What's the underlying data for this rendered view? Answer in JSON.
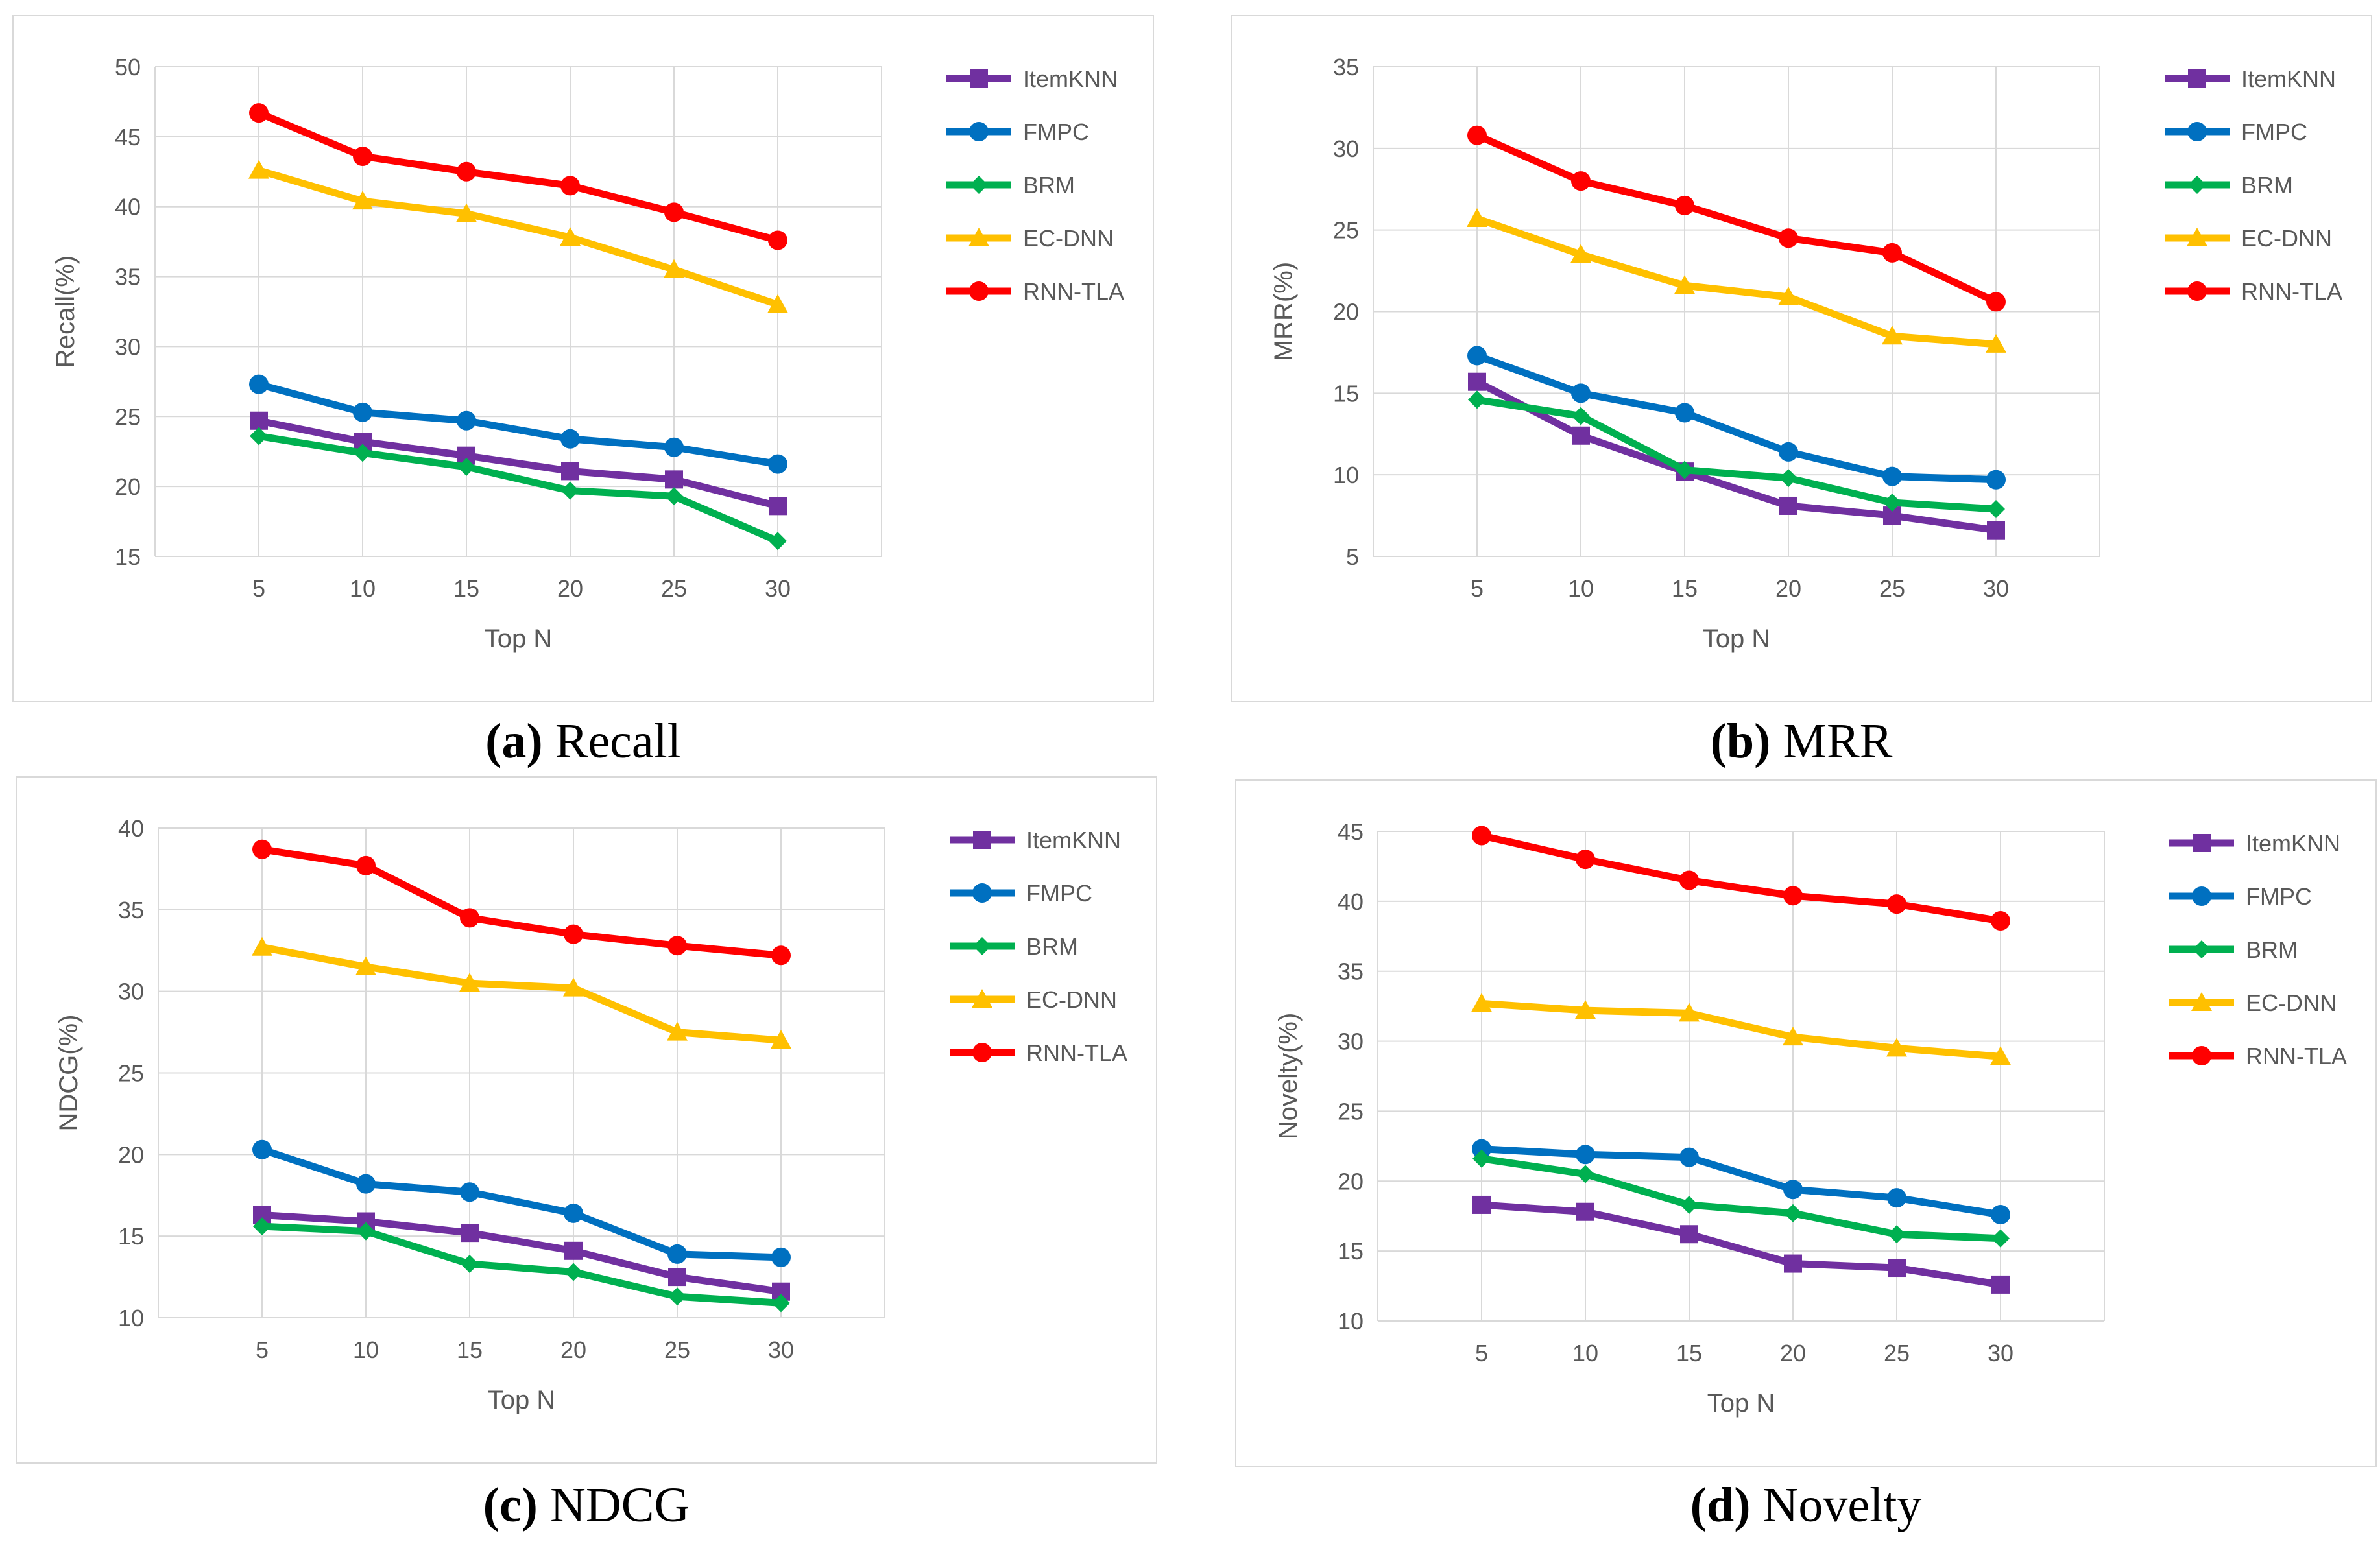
{
  "series_colors": {
    "ItemKNN": "#7030a0",
    "FMPC": "#0070c0",
    "BRM": "#00b050",
    "EC-DNN": "#ffc000",
    "RNN-TLA": "#ff0000"
  },
  "series_markers": {
    "ItemKNN": "square",
    "FMPC": "circle",
    "BRM": "diamond",
    "EC-DNN": "triangle",
    "RNN-TLA": "circle"
  },
  "chart_data": [
    {
      "type": "line",
      "caption_letter": "(a)",
      "caption_text": " Recall",
      "xlabel": "Top N",
      "ylabel": "Recall(%)",
      "categories": [
        "5",
        "10",
        "15",
        "20",
        "25",
        "30"
      ],
      "ylim": [
        15,
        50
      ],
      "yticks": [
        "15",
        "20",
        "25",
        "30",
        "35",
        "40",
        "45",
        "50"
      ],
      "grid": true,
      "legend_position": "right",
      "series": [
        {
          "name": "ItemKNN",
          "values": [
            24.7,
            23.2,
            22.2,
            21.1,
            20.5,
            18.6
          ]
        },
        {
          "name": "FMPC",
          "values": [
            27.3,
            25.3,
            24.7,
            23.4,
            22.8,
            21.6
          ]
        },
        {
          "name": "BRM",
          "values": [
            23.6,
            22.4,
            21.4,
            19.7,
            19.3,
            16.1
          ]
        },
        {
          "name": "EC-DNN",
          "values": [
            42.6,
            40.4,
            39.5,
            37.8,
            35.5,
            33.0
          ]
        },
        {
          "name": "RNN-TLA",
          "values": [
            46.7,
            43.6,
            42.5,
            41.5,
            39.6,
            37.6
          ]
        }
      ]
    },
    {
      "type": "line",
      "caption_letter": "(b)",
      "caption_text": " MRR",
      "xlabel": "Top N",
      "ylabel": "MRR(%)",
      "categories": [
        "5",
        "10",
        "15",
        "20",
        "25",
        "30"
      ],
      "ylim": [
        5,
        35
      ],
      "yticks": [
        "5",
        "10",
        "15",
        "20",
        "25",
        "30",
        "35"
      ],
      "grid": true,
      "legend_position": "right",
      "series": [
        {
          "name": "ItemKNN",
          "values": [
            15.7,
            12.4,
            10.2,
            8.1,
            7.5,
            6.6
          ]
        },
        {
          "name": "FMPC",
          "values": [
            17.3,
            15.0,
            13.8,
            11.4,
            9.9,
            9.7
          ]
        },
        {
          "name": "BRM",
          "values": [
            14.6,
            13.6,
            10.3,
            9.8,
            8.3,
            7.9
          ]
        },
        {
          "name": "EC-DNN",
          "values": [
            25.7,
            23.5,
            21.6,
            20.9,
            18.5,
            18.0
          ]
        },
        {
          "name": "RNN-TLA",
          "values": [
            30.8,
            28.0,
            26.5,
            24.5,
            23.6,
            20.6
          ]
        }
      ]
    },
    {
      "type": "line",
      "caption_letter": "(c)",
      "caption_text": " NDCG",
      "xlabel": "Top N",
      "ylabel": "NDCG(%)",
      "categories": [
        "5",
        "10",
        "15",
        "20",
        "25",
        "30"
      ],
      "ylim": [
        10,
        40
      ],
      "yticks": [
        "10",
        "15",
        "20",
        "25",
        "30",
        "35",
        "40"
      ],
      "grid": true,
      "legend_position": "right",
      "series": [
        {
          "name": "ItemKNN",
          "values": [
            16.3,
            15.9,
            15.2,
            14.1,
            12.5,
            11.6
          ]
        },
        {
          "name": "FMPC",
          "values": [
            20.3,
            18.2,
            17.7,
            16.4,
            13.9,
            13.7
          ]
        },
        {
          "name": "BRM",
          "values": [
            15.6,
            15.3,
            13.3,
            12.8,
            11.3,
            10.9
          ]
        },
        {
          "name": "EC-DNN",
          "values": [
            32.7,
            31.5,
            30.5,
            30.2,
            27.5,
            27.0
          ]
        },
        {
          "name": "RNN-TLA",
          "values": [
            38.7,
            37.7,
            34.5,
            33.5,
            32.8,
            32.2
          ]
        }
      ]
    },
    {
      "type": "line",
      "caption_letter": "(d)",
      "caption_text": " Novelty",
      "xlabel": "Top N",
      "ylabel": "Novelty(%)",
      "categories": [
        "5",
        "10",
        "15",
        "20",
        "25",
        "30"
      ],
      "ylim": [
        10,
        45
      ],
      "yticks": [
        "10",
        "15",
        "20",
        "25",
        "30",
        "35",
        "40",
        "45"
      ],
      "grid": true,
      "legend_position": "right",
      "series": [
        {
          "name": "ItemKNN",
          "values": [
            18.3,
            17.8,
            16.2,
            14.1,
            13.8,
            12.6
          ]
        },
        {
          "name": "FMPC",
          "values": [
            22.3,
            21.9,
            21.7,
            19.4,
            18.8,
            17.6
          ]
        },
        {
          "name": "BRM",
          "values": [
            21.6,
            20.5,
            18.3,
            17.7,
            16.2,
            15.9
          ]
        },
        {
          "name": "EC-DNN",
          "values": [
            32.7,
            32.2,
            32.0,
            30.3,
            29.5,
            28.9
          ]
        },
        {
          "name": "RNN-TLA",
          "values": [
            44.7,
            43.0,
            41.5,
            40.4,
            39.8,
            38.6
          ]
        }
      ]
    }
  ]
}
